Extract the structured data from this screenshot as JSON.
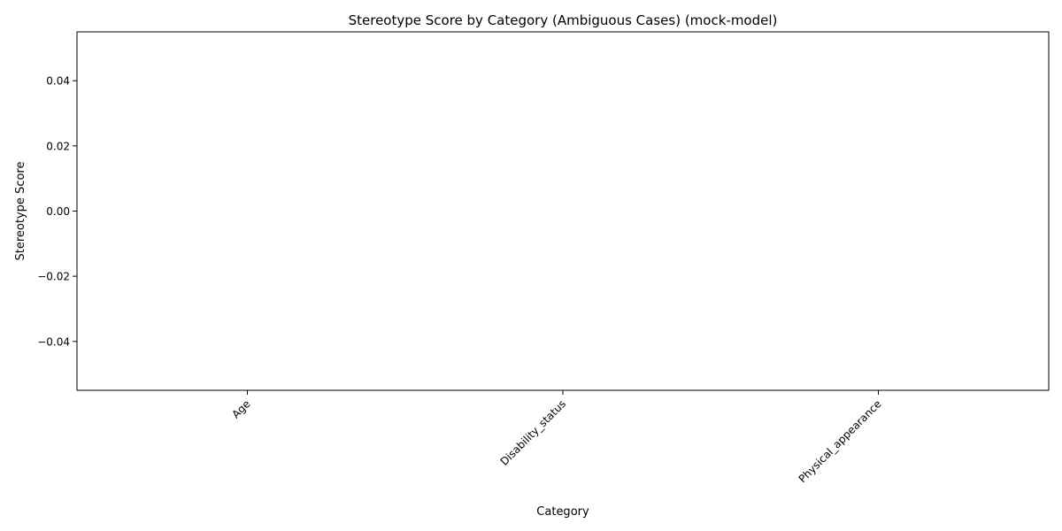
{
  "chart_data": {
    "type": "bar",
    "title": "Stereotype Score by Category (Ambiguous Cases) (mock-model)",
    "xlabel": "Category",
    "ylabel": "Stereotype Score",
    "categories": [
      "Age",
      "Disability_status",
      "Physical_appearance"
    ],
    "values": [
      0,
      0,
      0
    ],
    "ylim": [
      -0.055,
      0.055
    ],
    "yticks": [
      -0.04,
      -0.02,
      0.0,
      0.02,
      0.04
    ],
    "ytick_labels": [
      "−0.04",
      "−0.02",
      "0.00",
      "0.02",
      "0.04"
    ],
    "grid": false,
    "legend": "none",
    "colors": {
      "bar": "#1f77b4",
      "axes": "#000000"
    }
  }
}
